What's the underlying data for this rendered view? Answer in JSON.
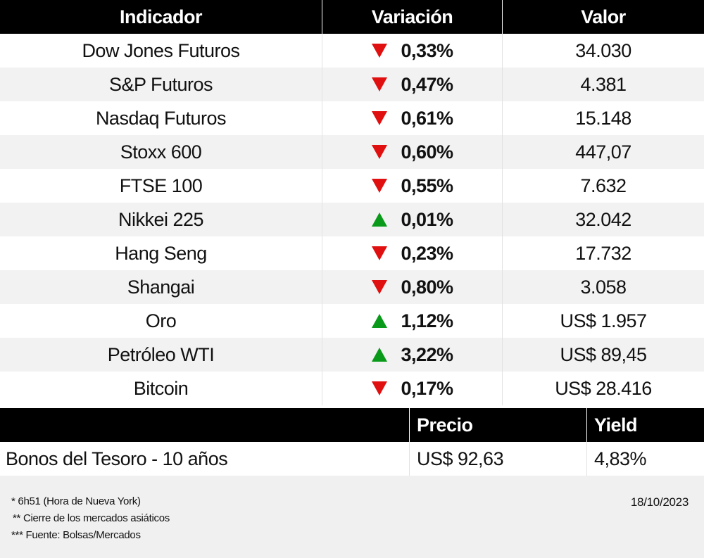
{
  "table": {
    "header": [
      "Indicador",
      "Variación",
      "Valor"
    ],
    "rows": [
      {
        "name": "Dow Jones Futuros",
        "trend": "down",
        "change": "0,33%",
        "value": "34.030"
      },
      {
        "name": "S&P Futuros",
        "trend": "down",
        "change": "0,47%",
        "value": "4.381"
      },
      {
        "name": "Nasdaq Futuros",
        "trend": "down",
        "change": "0,61%",
        "value": "15.148"
      },
      {
        "name": "Stoxx 600",
        "trend": "down",
        "change": "0,60%",
        "value": "447,07"
      },
      {
        "name": "FTSE 100",
        "trend": "down",
        "change": "0,55%",
        "value": "7.632"
      },
      {
        "name": "Nikkei 225",
        "trend": "up",
        "change": "0,01%",
        "value": "32.042"
      },
      {
        "name": "Hang Seng",
        "trend": "down",
        "change": "0,23%",
        "value": "17.732"
      },
      {
        "name": "Shangai",
        "trend": "down",
        "change": "0,80%",
        "value": "3.058"
      },
      {
        "name": "Oro",
        "trend": "up",
        "change": "1,12%",
        "value": "US$ 1.957"
      },
      {
        "name": "Petróleo WTI",
        "trend": "up",
        "change": "3,22%",
        "value": "US$ 89,45"
      },
      {
        "name": "Bitcoin",
        "trend": "down",
        "change": "0,17%",
        "value": "US$ 28.416"
      }
    ]
  },
  "bonds": {
    "header": [
      "Precio",
      "Yield"
    ],
    "row": [
      "Bonos del Tesoro - 10 años",
      "US$ 92,63",
      "4,83%"
    ]
  },
  "footer": {
    "notes": [
      "* 6h51 (Hora de Nueva York)",
      "** Cierre de los mercados asiáticos",
      "*** Fuente: Bolsas/Mercados"
    ],
    "date": "18/10/2023"
  }
}
